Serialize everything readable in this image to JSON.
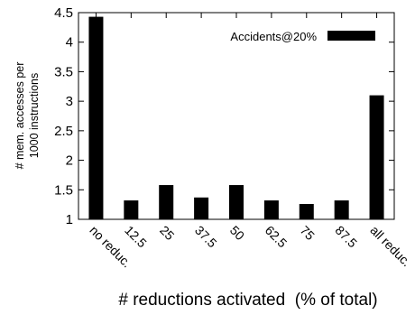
{
  "chart_data": {
    "type": "bar",
    "categories": [
      "no reduc.",
      "12.5",
      "25",
      "37.5",
      "50",
      "62.5",
      "75",
      "87.5",
      "all reduc."
    ],
    "series": [
      {
        "name": "Accidents@20%",
        "values": [
          4.43,
          1.32,
          1.58,
          1.37,
          1.58,
          1.32,
          1.26,
          1.32,
          3.1
        ]
      }
    ],
    "ylim": [
      1,
      4.5
    ],
    "yticks": [
      1,
      1.5,
      2,
      2.5,
      3,
      3.5,
      4,
      4.5
    ],
    "ylabel_lines": [
      "# mem. accesses per",
      "1000 instructions"
    ],
    "xlabel": "# reductions activated  (% of total)",
    "legend": {
      "position": "top-right"
    },
    "grid": false,
    "colors": {
      "bar": "#000000",
      "axis": "#000000"
    }
  }
}
